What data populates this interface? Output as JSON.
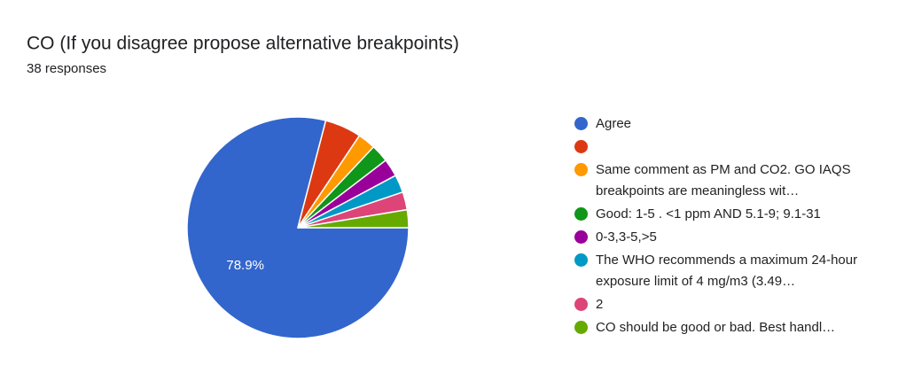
{
  "chart_data": {
    "type": "pie",
    "title": "CO (If you disagree propose alternative breakpoints)",
    "subtitle": "38 responses",
    "categories": [
      "Agree",
      null,
      "Same comment as PM and CO2. GO IAQS breakpoints are meaningless wit…",
      "Good: 1-5 . <1 ppm AND 5.1-9; 9.1-31",
      "0-3,3-5,>5",
      "The WHO recommends a maximum 24-hour exposure limit of 4 mg/m3 (3.49…",
      "2",
      "CO should be good or bad. Best handl…"
    ],
    "values": [
      78.9,
      5.3,
      2.6,
      2.6,
      2.6,
      2.6,
      2.6,
      2.6
    ],
    "value_labels": [
      "78.9%",
      null,
      null,
      null,
      null,
      null,
      null,
      null
    ],
    "colors": [
      "#3366cc",
      "#dc3912",
      "#ff9900",
      "#109618",
      "#990099",
      "#0099c6",
      "#dd4477",
      "#66aa00"
    ],
    "legend": "right"
  }
}
